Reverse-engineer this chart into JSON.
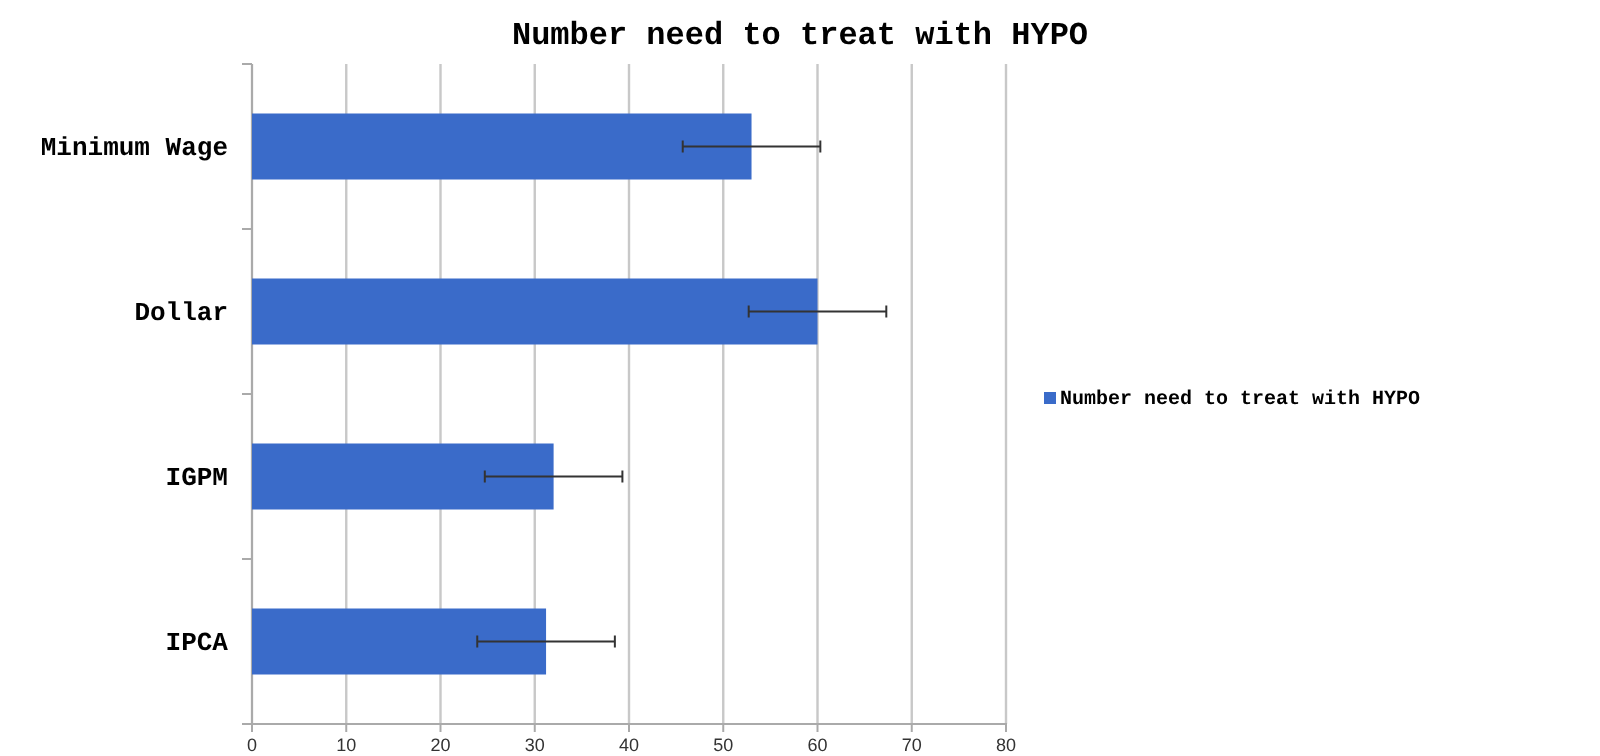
{
  "chart_data": {
    "type": "bar",
    "orientation": "horizontal",
    "title": "Number need to treat with HYPO",
    "categories": [
      "Minimum Wage",
      "Dollar",
      "IGPM",
      "IPCA"
    ],
    "series": [
      {
        "name": "Number need to treat with HYPO",
        "color": "#3a6bc9",
        "values": [
          53,
          60,
          32,
          31.2
        ],
        "errors": [
          7.3,
          7.3,
          7.3,
          7.3
        ]
      }
    ],
    "xlim": [
      0,
      80
    ],
    "xticks": [
      0,
      10,
      20,
      30,
      40,
      50,
      60,
      70,
      80
    ],
    "grid": "x",
    "legend": "right"
  }
}
